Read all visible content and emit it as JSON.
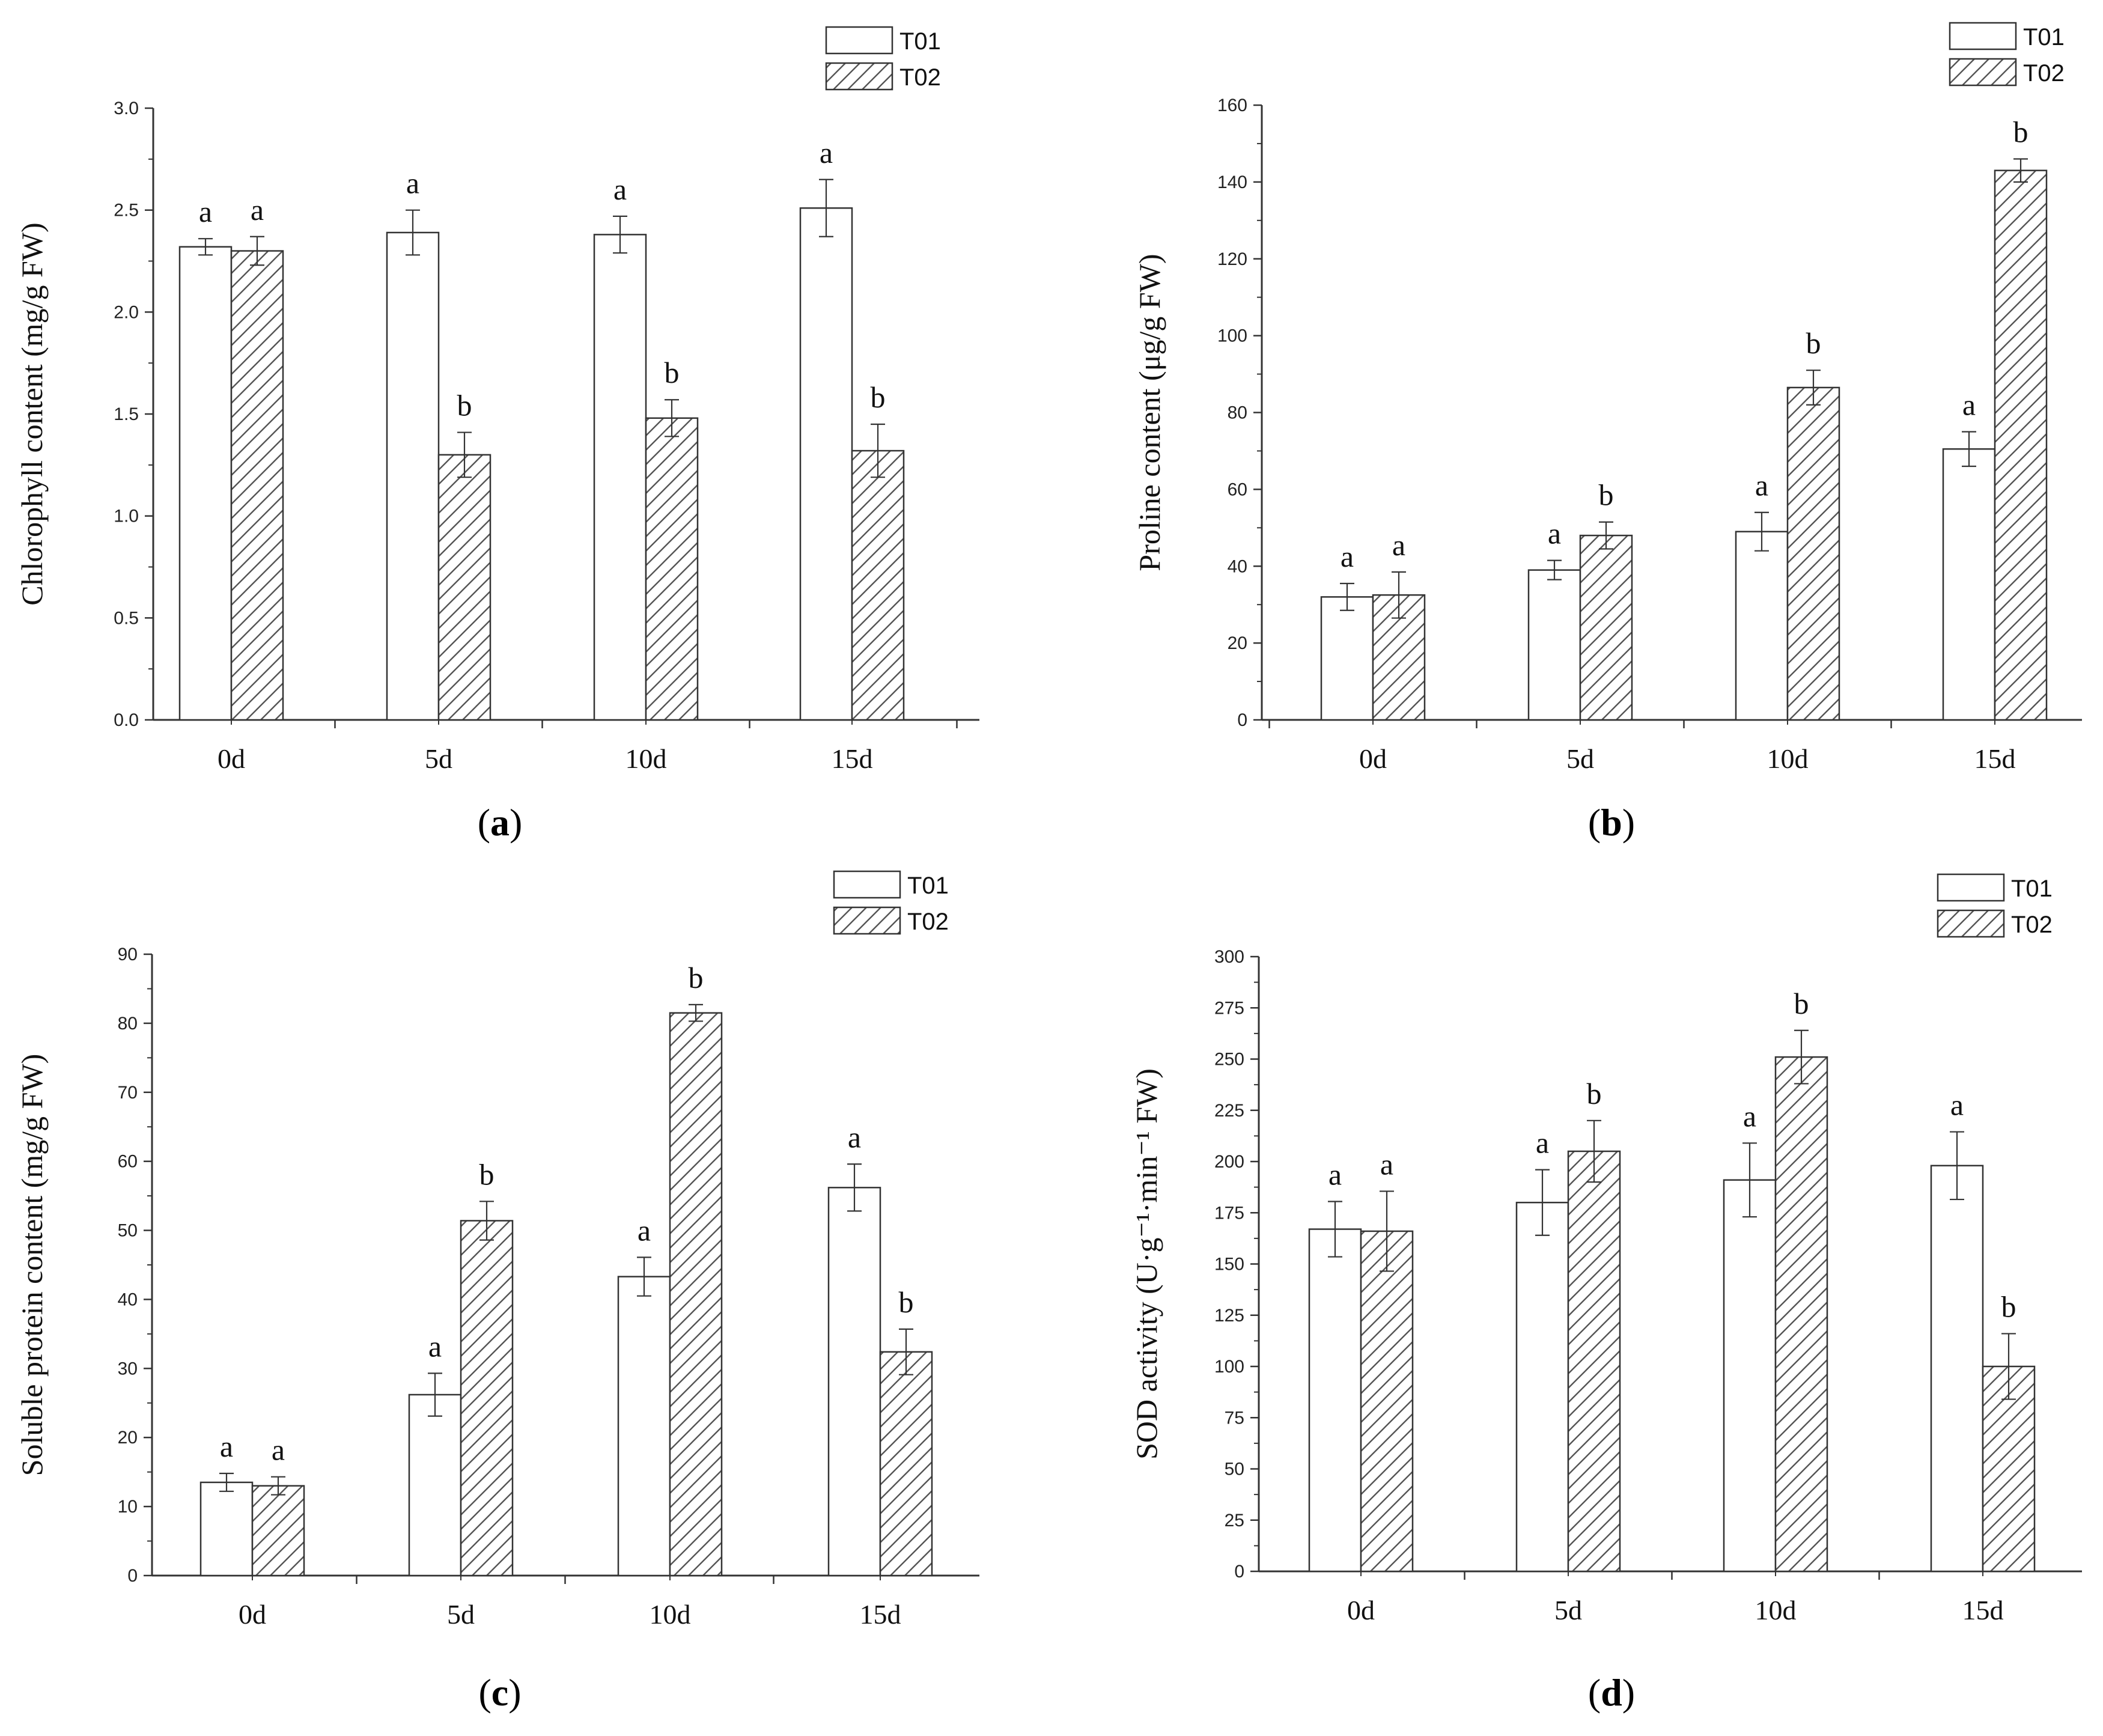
{
  "chart_data": [
    {
      "type": "bar",
      "panel": "a",
      "categories": [
        "0d",
        "5d",
        "10d",
        "15d"
      ],
      "ylabel": "Chlorophyll content (mg/g FW)",
      "ylim": [
        0,
        3.0
      ],
      "yticks": [
        0,
        0.5,
        1.0,
        1.5,
        2.0,
        2.5,
        3.0
      ],
      "ytick_labels": [
        "0.0",
        "0.5",
        "1.0",
        "1.5",
        "2.0",
        "2.5",
        "3.0"
      ],
      "legend": "top-right",
      "series": [
        {
          "name": "T01",
          "pattern": "open",
          "values": [
            2.32,
            2.39,
            2.38,
            2.51
          ],
          "errors": [
            0.04,
            0.11,
            0.09,
            0.14
          ],
          "letters": [
            "a",
            "a",
            "a",
            "a"
          ]
        },
        {
          "name": "T02",
          "pattern": "hatched",
          "values": [
            2.3,
            1.3,
            1.48,
            1.32
          ],
          "errors": [
            0.07,
            0.11,
            0.09,
            0.13
          ],
          "letters": [
            "a",
            "b",
            "b",
            "b"
          ]
        }
      ]
    },
    {
      "type": "bar",
      "panel": "b",
      "categories": [
        "0d",
        "5d",
        "10d",
        "15d"
      ],
      "ylabel": "Proline content (μg/g FW)",
      "ylim": [
        0,
        160
      ],
      "yticks": [
        0,
        20,
        40,
        60,
        80,
        100,
        120,
        140,
        160
      ],
      "ytick_labels": [
        "0",
        "20",
        "40",
        "60",
        "80",
        "100",
        "120",
        "140",
        "160"
      ],
      "legend": "top-right",
      "series": [
        {
          "name": "T01",
          "pattern": "open",
          "values": [
            32,
            39,
            49,
            70.5
          ],
          "errors": [
            3.5,
            2.5,
            5,
            4.5
          ],
          "letters": [
            "a",
            "a",
            "a",
            "a"
          ]
        },
        {
          "name": "T02",
          "pattern": "hatched",
          "values": [
            32.5,
            48,
            86.5,
            143
          ],
          "errors": [
            6,
            3.5,
            4.5,
            3
          ],
          "letters": [
            "a",
            "b",
            "b",
            "b"
          ]
        }
      ]
    },
    {
      "type": "bar",
      "panel": "c",
      "categories": [
        "0d",
        "5d",
        "10d",
        "15d"
      ],
      "ylabel": "Soluble protein content (mg/g FW)",
      "ylim": [
        0,
        90
      ],
      "yticks": [
        0,
        10,
        20,
        30,
        40,
        50,
        60,
        70,
        80,
        90
      ],
      "ytick_labels": [
        "0",
        "10",
        "20",
        "30",
        "40",
        "50",
        "60",
        "70",
        "80",
        "90"
      ],
      "legend": "top-right",
      "series": [
        {
          "name": "T01",
          "pattern": "open",
          "values": [
            13.5,
            26.2,
            43.3,
            56.2
          ],
          "errors": [
            1.3,
            3.1,
            2.8,
            3.4
          ],
          "letters": [
            "a",
            "a",
            "a",
            "a"
          ]
        },
        {
          "name": "T02",
          "pattern": "hatched",
          "values": [
            13,
            51.4,
            81.5,
            32.4
          ],
          "errors": [
            1.3,
            2.8,
            1.2,
            3.3
          ],
          "letters": [
            "a",
            "b",
            "b",
            "b"
          ]
        }
      ]
    },
    {
      "type": "bar",
      "panel": "d",
      "categories": [
        "0d",
        "5d",
        "10d",
        "15d"
      ],
      "ylabel": "SOD activity  (U·g⁻¹·min⁻¹ FW)",
      "ylim": [
        0,
        300
      ],
      "yticks": [
        0,
        25,
        50,
        75,
        100,
        125,
        150,
        175,
        200,
        225,
        250,
        275,
        300
      ],
      "ytick_labels": [
        "0",
        "25",
        "50",
        "75",
        "100",
        "125",
        "150",
        "175",
        "200",
        "225",
        "250",
        "275",
        "300"
      ],
      "legend": "top-right",
      "series": [
        {
          "name": "T01",
          "pattern": "open",
          "values": [
            167,
            180,
            191,
            198
          ],
          "errors": [
            13.5,
            16,
            18,
            16.5
          ],
          "letters": [
            "a",
            "a",
            "a",
            "a"
          ]
        },
        {
          "name": "T02",
          "pattern": "hatched",
          "values": [
            166,
            205,
            251,
            100
          ],
          "errors": [
            19.5,
            15,
            13,
            16
          ],
          "letters": [
            "a",
            "b",
            "b",
            "b"
          ]
        }
      ]
    }
  ],
  "panel_labels": [
    "a",
    "b",
    "c",
    "d"
  ],
  "colors": {
    "bar_fill": "#ffffff",
    "stroke": "#333333",
    "hatch": "#555555",
    "text": "#111111"
  }
}
